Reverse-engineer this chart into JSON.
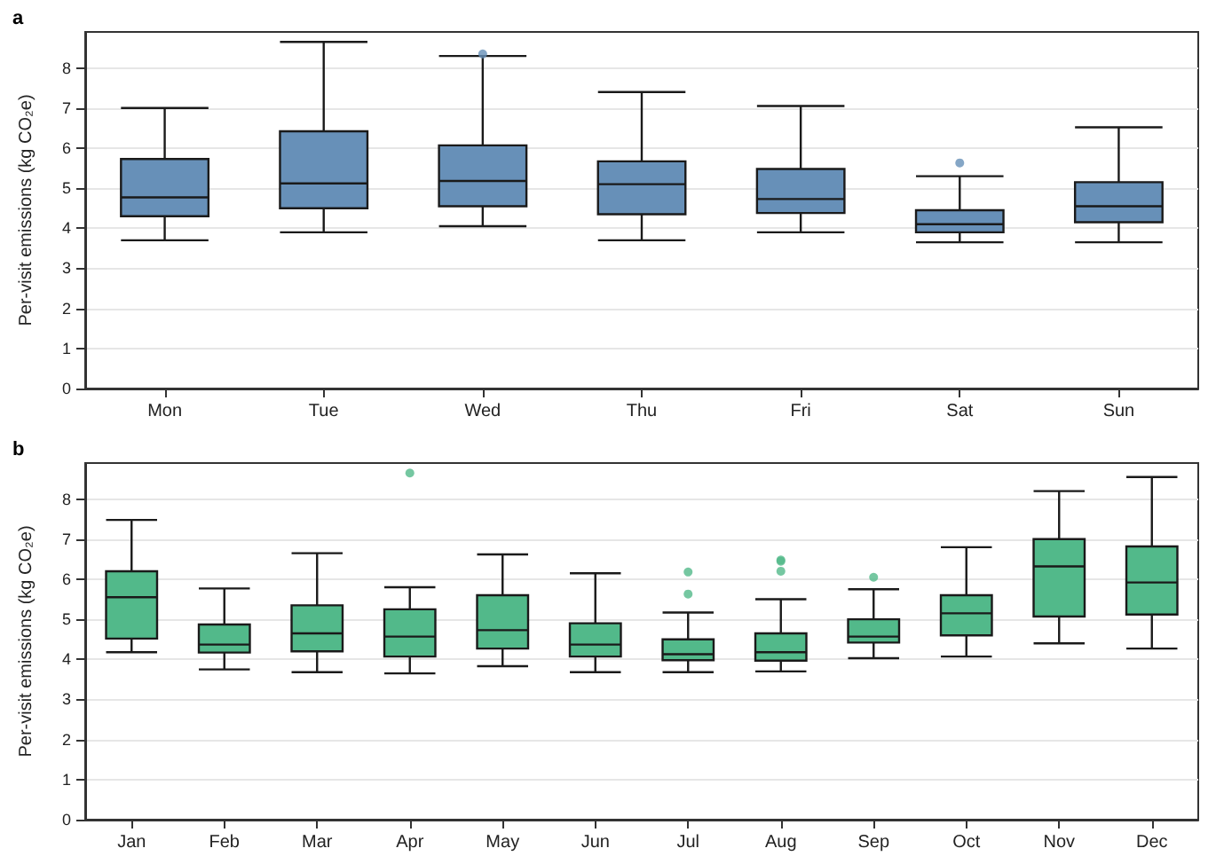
{
  "chart_data": [
    {
      "type": "box",
      "title": "a",
      "ylabel": "Per-visit emissions (kg CO₂e)",
      "categories": [
        "Mon",
        "Tue",
        "Wed",
        "Thu",
        "Fri",
        "Sat",
        "Sun"
      ],
      "color": "#6790b8",
      "ylim": [
        0,
        8.9
      ],
      "yticks": [
        0,
        1,
        2,
        3,
        4,
        5,
        6,
        7,
        8
      ],
      "grid": "y",
      "boxes": [
        {
          "low": 3.7,
          "q1": 4.3,
          "median": 4.77,
          "q3": 5.73,
          "high": 7.0
        },
        {
          "low": 3.9,
          "q1": 4.5,
          "median": 5.12,
          "q3": 6.42,
          "high": 8.65
        },
        {
          "low": 4.05,
          "q1": 4.55,
          "median": 5.18,
          "q3": 6.07,
          "high": 8.3,
          "outliers": [
            8.35
          ]
        },
        {
          "low": 3.7,
          "q1": 4.35,
          "median": 5.1,
          "q3": 5.67,
          "high": 7.4
        },
        {
          "low": 3.9,
          "q1": 4.38,
          "median": 4.73,
          "q3": 5.48,
          "high": 7.05
        },
        {
          "low": 3.65,
          "q1": 3.9,
          "median": 4.1,
          "q3": 4.45,
          "high": 5.3,
          "outliers": [
            5.63
          ]
        },
        {
          "low": 3.65,
          "q1": 4.15,
          "median": 4.55,
          "q3": 5.15,
          "high": 6.52
        }
      ]
    },
    {
      "type": "box",
      "title": "b",
      "ylabel": "Per-visit emissions (kg CO₂e)",
      "categories": [
        "Jan",
        "Feb",
        "Mar",
        "Apr",
        "May",
        "Jun",
        "Jul",
        "Aug",
        "Sep",
        "Oct",
        "Nov",
        "Dec"
      ],
      "color": "#52b98a",
      "ylim": [
        0,
        8.9
      ],
      "yticks": [
        0,
        1,
        2,
        3,
        4,
        5,
        6,
        7,
        8
      ],
      "grid": "y",
      "boxes": [
        {
          "low": 4.18,
          "q1": 4.52,
          "median": 5.55,
          "q3": 6.2,
          "high": 7.48
        },
        {
          "low": 3.75,
          "q1": 4.17,
          "median": 4.37,
          "q3": 4.87,
          "high": 5.77
        },
        {
          "low": 3.68,
          "q1": 4.2,
          "median": 4.65,
          "q3": 5.35,
          "high": 6.65
        },
        {
          "low": 3.65,
          "q1": 4.07,
          "median": 4.57,
          "q3": 5.25,
          "high": 5.8,
          "outliers": [
            8.65
          ]
        },
        {
          "low": 3.83,
          "q1": 4.27,
          "median": 4.73,
          "q3": 5.6,
          "high": 6.62
        },
        {
          "low": 3.68,
          "q1": 4.07,
          "median": 4.37,
          "q3": 4.9,
          "high": 6.15
        },
        {
          "low": 3.68,
          "q1": 3.98,
          "median": 4.13,
          "q3": 4.5,
          "high": 5.17,
          "outliers": [
            5.63,
            6.18
          ]
        },
        {
          "low": 3.7,
          "q1": 3.97,
          "median": 4.18,
          "q3": 4.65,
          "high": 5.5,
          "outliers": [
            6.2,
            6.45,
            6.48
          ]
        },
        {
          "low": 4.03,
          "q1": 4.42,
          "median": 4.57,
          "q3": 5.0,
          "high": 5.75,
          "outliers": [
            6.05
          ]
        },
        {
          "low": 4.07,
          "q1": 4.6,
          "median": 5.15,
          "q3": 5.6,
          "high": 6.8
        },
        {
          "low": 4.4,
          "q1": 5.07,
          "median": 6.32,
          "q3": 7.0,
          "high": 8.2
        },
        {
          "low": 4.27,
          "q1": 5.12,
          "median": 5.92,
          "q3": 6.82,
          "high": 8.55
        }
      ]
    }
  ]
}
